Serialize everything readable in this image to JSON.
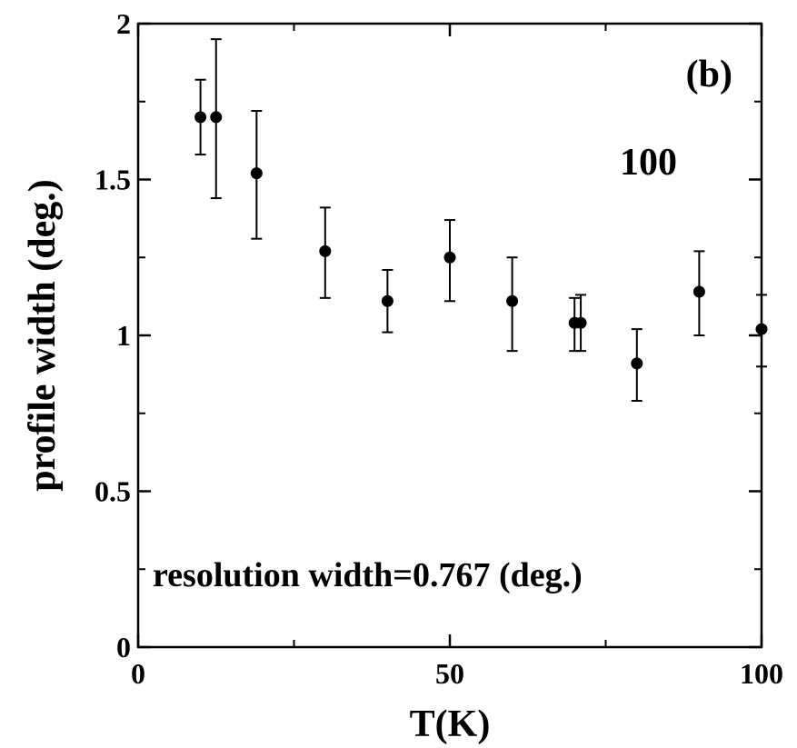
{
  "chart_data": {
    "type": "scatter",
    "panel_label": "(b)",
    "reflection_label": "100",
    "note": "resolution width=0.767 (deg.)",
    "xlabel": "T(K)",
    "ylabel": "profile width (deg.)",
    "xlim": [
      0,
      100
    ],
    "ylim": [
      0,
      2
    ],
    "xticks": [
      0,
      50,
      100
    ],
    "yticks": [
      0,
      0.5,
      1,
      1.5,
      2
    ],
    "xtick_labels": [
      "0",
      "50",
      "100"
    ],
    "ytick_labels": [
      "0",
      "0.5",
      "1",
      "1.5",
      "2"
    ],
    "grid": false,
    "points": [
      {
        "x": 10,
        "y": 1.7,
        "err_low": 1.58,
        "err_high": 1.82
      },
      {
        "x": 12.5,
        "y": 1.7,
        "err_low": 1.44,
        "err_high": 1.95
      },
      {
        "x": 19,
        "y": 1.52,
        "err_low": 1.31,
        "err_high": 1.72
      },
      {
        "x": 30,
        "y": 1.27,
        "err_low": 1.12,
        "err_high": 1.41
      },
      {
        "x": 40,
        "y": 1.11,
        "err_low": 1.01,
        "err_high": 1.21
      },
      {
        "x": 50,
        "y": 1.25,
        "err_low": 1.11,
        "err_high": 1.37
      },
      {
        "x": 60,
        "y": 1.11,
        "err_low": 0.95,
        "err_high": 1.25
      },
      {
        "x": 70,
        "y": 1.04,
        "err_low": 0.95,
        "err_high": 1.12
      },
      {
        "x": 71,
        "y": 1.04,
        "err_low": 0.95,
        "err_high": 1.13
      },
      {
        "x": 80,
        "y": 0.91,
        "err_low": 0.79,
        "err_high": 1.02
      },
      {
        "x": 90,
        "y": 1.14,
        "err_low": 1.0,
        "err_high": 1.27
      },
      {
        "x": 100,
        "y": 1.02,
        "err_low": 0.9,
        "err_high": 1.13
      }
    ]
  }
}
